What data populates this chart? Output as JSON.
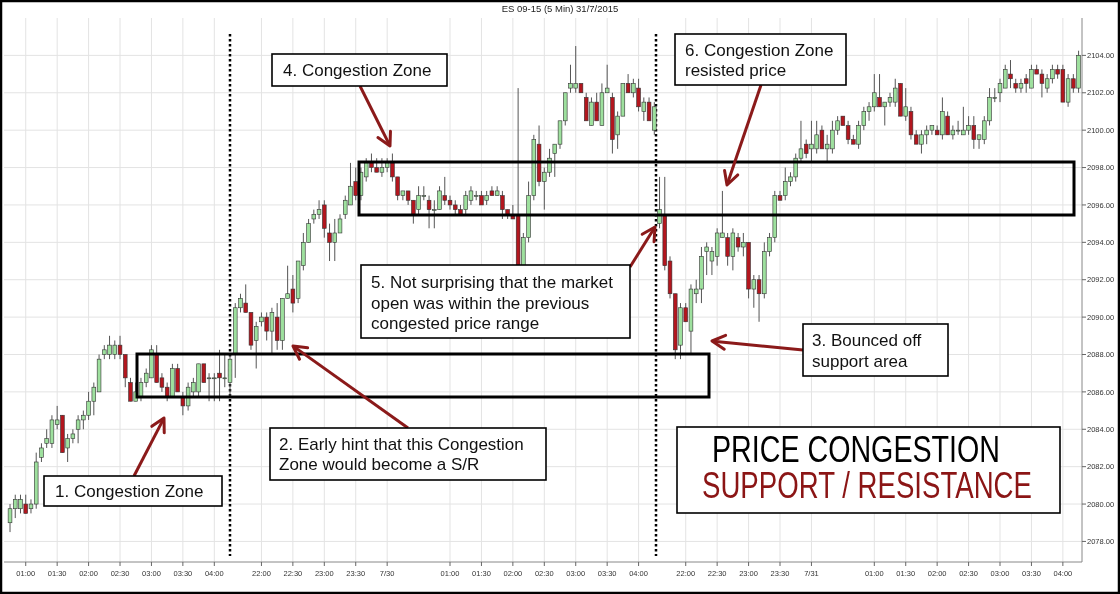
{
  "chart_data": {
    "type": "candlestick",
    "title": "ES 09-15 (5 Min) 31/7/2015",
    "categories": [
      null,
      null,
      null,
      "01:00",
      null,
      null,
      null,
      null,
      null,
      "01:30",
      null,
      null,
      null,
      null,
      null,
      "02:00",
      null,
      null,
      null,
      null,
      null,
      "02:30",
      null,
      null,
      null,
      null,
      null,
      "03:00",
      null,
      null,
      null,
      null,
      null,
      "03:30",
      null,
      null,
      null,
      null,
      null,
      "04:00",
      null,
      null,
      null,
      null,
      null,
      null,
      null,
      null,
      "22:00",
      null,
      null,
      null,
      null,
      null,
      "22:30",
      null,
      null,
      null,
      null,
      null,
      "23:00",
      null,
      null,
      null,
      null,
      null,
      "23:30",
      null,
      null,
      null,
      null,
      null,
      "7/30",
      null,
      null,
      null,
      null,
      null,
      null,
      null,
      null,
      null,
      null,
      null,
      "01:00",
      null,
      null,
      null,
      null,
      null,
      "01:30",
      null,
      null,
      null,
      null,
      null,
      "02:00",
      null,
      null,
      null,
      null,
      null,
      "02:30",
      null,
      null,
      null,
      null,
      null,
      "03:00",
      null,
      null,
      null,
      null,
      null,
      "03:30",
      null,
      null,
      null,
      null,
      null,
      "04:00",
      null,
      null,
      null,
      null,
      null,
      null,
      null,
      null,
      "22:00",
      null,
      null,
      null,
      null,
      null,
      "22:30",
      null,
      null,
      null,
      null,
      null,
      "23:00",
      null,
      null,
      null,
      null,
      null,
      "23:30",
      null,
      null,
      null,
      null,
      null,
      "7/31",
      null,
      null,
      null,
      null,
      null,
      null,
      null,
      null,
      null,
      null,
      null,
      "01:00",
      null,
      null,
      null,
      null,
      null,
      "01:30",
      null,
      null,
      null,
      null,
      null,
      "02:00",
      null,
      null,
      null,
      null,
      null,
      "02:30",
      null,
      null,
      null,
      null,
      null,
      "03:00",
      null,
      null,
      null,
      null,
      null,
      "03:30",
      null,
      null,
      null,
      null,
      null,
      "04:00",
      null,
      null,
      null
    ],
    "ohlc": [
      [
        2079,
        2080,
        2078.5,
        2079.75
      ],
      [
        2079.75,
        2080.5,
        2079.25,
        2080.25
      ],
      [
        2079.75,
        2080.5,
        2079.5,
        2080.25
      ],
      [
        2080,
        2080.5,
        2079.5,
        2079.5
      ],
      [
        2079.75,
        2080.25,
        2079.5,
        2080
      ],
      [
        2080,
        2082.75,
        2079.75,
        2082.25
      ],
      [
        2082.5,
        2083.25,
        2082.25,
        2083
      ],
      [
        2083.25,
        2084,
        2083,
        2083.5
      ],
      [
        2083.25,
        2084.75,
        2083,
        2084.5
      ],
      [
        2084.25,
        2085.25,
        2084,
        2084.5
      ],
      [
        2084.75,
        2084.75,
        2082.75,
        2082.75
      ],
      [
        2083,
        2083.75,
        2082.25,
        2083.5
      ],
      [
        2083.5,
        2084,
        2083.25,
        2083.75
      ],
      [
        2084,
        2084.75,
        2083.25,
        2084.5
      ],
      [
        2084.5,
        2085,
        2084,
        2084.75
      ],
      [
        2084.75,
        2086,
        2084.5,
        2085.5
      ],
      [
        2085.5,
        2086.5,
        2084.75,
        2086.25
      ],
      [
        2086,
        2088,
        2086,
        2087.75
      ],
      [
        2088,
        2088.5,
        2087.75,
        2088.25
      ],
      [
        2088,
        2089,
        2087.75,
        2088.5
      ],
      [
        2088,
        2088.75,
        2087.75,
        2088.5
      ],
      [
        2088.5,
        2089,
        2087.75,
        2088
      ],
      [
        2088,
        2088,
        2086.25,
        2086.75
      ],
      [
        2086.5,
        2086.75,
        2085.5,
        2085.5
      ],
      [
        2085.5,
        2086.5,
        2085.5,
        2086
      ],
      [
        2085.75,
        2086.75,
        2085.5,
        2086.5
      ],
      [
        2086.5,
        2087.25,
        2086.25,
        2087
      ],
      [
        2086.75,
        2088.5,
        2086.75,
        2088.25
      ],
      [
        2088,
        2088.5,
        2086.5,
        2086.5
      ],
      [
        2086.75,
        2087,
        2086,
        2086.25
      ],
      [
        2086.25,
        2086.5,
        2085.5,
        2085.75
      ],
      [
        2085.75,
        2087.5,
        2085.75,
        2087.25
      ],
      [
        2087.25,
        2087.5,
        2086,
        2086
      ],
      [
        2085.75,
        2086,
        2084.75,
        2085.25
      ],
      [
        2085.25,
        2086.5,
        2085,
        2086.25
      ],
      [
        2086,
        2086.75,
        2085.75,
        2086.5
      ],
      [
        2086,
        2087.5,
        2085.75,
        2087.5
      ],
      [
        2087.5,
        2087.5,
        2086.5,
        2086.5
      ],
      [
        2086.75,
        2087,
        2085.5,
        2086.75
      ],
      [
        2086.75,
        2087,
        2085.5,
        2086.75
      ],
      [
        2087,
        2088.25,
        2085.5,
        2086.75
      ],
      [
        2086.75,
        2088,
        2086.25,
        2086.75
      ],
      [
        2086.5,
        2088,
        2085.75,
        2087.75
      ],
      [
        2088,
        2090.75,
        2086.75,
        2090.5
      ],
      [
        2090.5,
        2091.25,
        2090.25,
        2091
      ],
      [
        2090.75,
        2091.75,
        2090.25,
        2090.25
      ],
      [
        2090.25,
        2090.25,
        2088.25,
        2088.5
      ],
      [
        2088.75,
        2089.75,
        2087.25,
        2089.5
      ],
      [
        2089.75,
        2090.25,
        2089.5,
        2090
      ],
      [
        2090,
        2090.25,
        2088.75,
        2089.25
      ],
      [
        2089.25,
        2090.5,
        2088,
        2090.25
      ],
      [
        2090,
        2090.75,
        2088.25,
        2088.75
      ],
      [
        2088.75,
        2091,
        2088.25,
        2091
      ],
      [
        2091,
        2092.75,
        2091,
        2091.25
      ],
      [
        2091.5,
        2092.25,
        2090.25,
        2090.75
      ],
      [
        2091,
        2093,
        2090.75,
        2093
      ],
      [
        2092.75,
        2094.5,
        2092.5,
        2094
      ],
      [
        2094,
        2095.25,
        2094,
        2095
      ],
      [
        2095.25,
        2095.75,
        2095,
        2095.5
      ],
      [
        2095.5,
        2096.25,
        2095.25,
        2095.75
      ],
      [
        2096,
        2096.25,
        2094.25,
        2094.75
      ],
      [
        2094.5,
        2095,
        2093,
        2094
      ],
      [
        2094,
        2095.25,
        2093,
        2094.5
      ],
      [
        2094.5,
        2095.5,
        2094.5,
        2095.25
      ],
      [
        2095.5,
        2096.5,
        2095.25,
        2096.25
      ],
      [
        2096,
        2098.25,
        2096,
        2097
      ],
      [
        2097.25,
        2098,
        2096.25,
        2096.5
      ],
      [
        2096.5,
        2098,
        2096.25,
        2097.75
      ],
      [
        2097.5,
        2098.5,
        2097.25,
        2098.25
      ],
      [
        2098.25,
        2098.75,
        2097.75,
        2098
      ],
      [
        2098,
        2098.5,
        2097.75,
        2097.75
      ],
      [
        2097.75,
        2098.5,
        2097.5,
        2098
      ],
      [
        2098,
        2098.5,
        2097.75,
        2098.25
      ],
      [
        2098.25,
        2098.75,
        2097.25,
        2097.5
      ],
      [
        2097.5,
        2097.5,
        2096.25,
        2096.5
      ],
      [
        2096.5,
        2096.75,
        2096.25,
        2096.75
      ],
      [
        2096.75,
        2096.75,
        2096,
        2096.25
      ],
      [
        2096.25,
        2096.25,
        2095,
        2095.5
      ],
      [
        2095.75,
        2097,
        2095.5,
        2096.5
      ],
      [
        2096.5,
        2097,
        2096.25,
        2096.5
      ],
      [
        2096.25,
        2096.5,
        2094.75,
        2095.75
      ],
      [
        2095.75,
        2096.25,
        2094.75,
        2095.75
      ],
      [
        2095.75,
        2097,
        2095.75,
        2096.75
      ],
      [
        2096.5,
        2097.5,
        2096,
        2096.25
      ],
      [
        2096.25,
        2096.5,
        2095.75,
        2096
      ],
      [
        2096,
        2096.25,
        2095.5,
        2095.75
      ],
      [
        2095.75,
        2096,
        2095.5,
        2095.5
      ],
      [
        2095.75,
        2096.75,
        2095.5,
        2096.5
      ],
      [
        2096.25,
        2097,
        2096,
        2096.75
      ],
      [
        2096.5,
        2096.75,
        2096.25,
        2096.5
      ],
      [
        2096.5,
        2096.75,
        2096,
        2096
      ],
      [
        2096.25,
        2096.75,
        2096,
        2096.5
      ],
      [
        2096.75,
        2097,
        2096.5,
        2096.5
      ],
      [
        2096.5,
        2097,
        2096.5,
        2096.75
      ],
      [
        2096.5,
        2096.75,
        2095.25,
        2095.75
      ],
      [
        2095.75,
        2095.75,
        2095.25,
        2095.5
      ],
      [
        2095.5,
        2096,
        2095.25,
        2095.25
      ],
      [
        2095.5,
        2102.25,
        2092.75,
        2092.75
      ],
      [
        2092.75,
        2094.5,
        2092.75,
        2094.25
      ],
      [
        2094.25,
        2097.25,
        2094,
        2096.5
      ],
      [
        2096.5,
        2099.75,
        2096.25,
        2099.5
      ],
      [
        2099.25,
        2100.25,
        2097,
        2097.25
      ],
      [
        2097.25,
        2098,
        2095.75,
        2097.75
      ],
      [
        2097.75,
        2099,
        2097.5,
        2098.5
      ],
      [
        2098.75,
        2099.25,
        2097.5,
        2099.25
      ],
      [
        2099.25,
        2100.5,
        2099,
        2100.5
      ],
      [
        2100.5,
        2102,
        2100.25,
        2102
      ],
      [
        2102.25,
        2103.5,
        2102,
        2102.5
      ],
      [
        2102.25,
        2104.5,
        2102,
        2102.5
      ],
      [
        2102.5,
        2102.5,
        2102,
        2102
      ],
      [
        2101.75,
        2102,
        2100.5,
        2100.5
      ],
      [
        2100.25,
        2101.75,
        2100.25,
        2101.5
      ],
      [
        2101.5,
        2102,
        2100.5,
        2100.5
      ],
      [
        2100.25,
        2102.5,
        2100.25,
        2102
      ],
      [
        2102,
        2103.5,
        2102,
        2102.25
      ],
      [
        2101.75,
        2102,
        2098.75,
        2099.5
      ],
      [
        2099.75,
        2101,
        2099,
        2100.75
      ],
      [
        2100.75,
        2102.5,
        2100.75,
        2102.5
      ],
      [
        2102.5,
        2103,
        2102,
        2102
      ],
      [
        2102,
        2102.75,
        2101.75,
        2102.5
      ],
      [
        2102.25,
        2102.75,
        2101,
        2101.25
      ],
      [
        2101,
        2101.75,
        2100.5,
        2101.5
      ],
      [
        2101.5,
        2101.75,
        2100.5,
        2100.5
      ],
      [
        2100,
        2101.5,
        2099.75,
        2101.25
      ],
      [
        2095,
        2097.5,
        2094.75,
        2095.75
      ],
      [
        2095.5,
        2097.5,
        2092.5,
        2092.75
      ],
      [
        2093,
        2093.25,
        2091,
        2091.25
      ],
      [
        2091.25,
        2091.25,
        2087.75,
        2088.25
      ],
      [
        2088.5,
        2090.75,
        2087.75,
        2090.5
      ],
      [
        2090.5,
        2090.75,
        2089.75,
        2089.75
      ],
      [
        2089.25,
        2091.75,
        2088,
        2091.5
      ],
      [
        2091.25,
        2092,
        2090.75,
        2091.5
      ],
      [
        2091.5,
        2093.75,
        2090.75,
        2093.25
      ],
      [
        2093.5,
        2094,
        2092.25,
        2093.75
      ],
      [
        2093,
        2093.75,
        2092.25,
        2093.5
      ],
      [
        2093.25,
        2094.75,
        2092.75,
        2094.5
      ],
      [
        2094.25,
        2096.75,
        2094.25,
        2094.5
      ],
      [
        2094.25,
        2094.5,
        2092.75,
        2093.25
      ],
      [
        2093.25,
        2094.75,
        2092.5,
        2094.5
      ],
      [
        2094.25,
        2094.5,
        2093.5,
        2093.75
      ],
      [
        2093.75,
        2094.5,
        2093.25,
        2094
      ],
      [
        2094,
        2094,
        2091,
        2091.5
      ],
      [
        2091.5,
        2092.25,
        2090.5,
        2092
      ],
      [
        2092,
        2092.25,
        2089.75,
        2091.25
      ],
      [
        2091.25,
        2094,
        2091,
        2093.5
      ],
      [
        2093.5,
        2094.5,
        2093.25,
        2094.25
      ],
      [
        2094.25,
        2096.75,
        2094,
        2096.5
      ],
      [
        2096.5,
        2096.75,
        2096.25,
        2096.25
      ],
      [
        2096.5,
        2098,
        2096.25,
        2097.25
      ],
      [
        2097.25,
        2097.75,
        2097,
        2097.5
      ],
      [
        2097.5,
        2098.75,
        2097.25,
        2098.5
      ],
      [
        2098.5,
        2100.5,
        2098.25,
        2099
      ],
      [
        2099.25,
        2099.5,
        2098.5,
        2098.75
      ],
      [
        2099,
        2100.5,
        2098.25,
        2099.25
      ],
      [
        2099,
        2100.5,
        2098.75,
        2099.75
      ],
      [
        2100,
        2100.25,
        2099,
        2099
      ],
      [
        2099,
        2099.75,
        2098.25,
        2099.25
      ],
      [
        2099,
        2100.5,
        2098.75,
        2100
      ],
      [
        2100,
        2100.75,
        2099.75,
        2100.5
      ],
      [
        2100.75,
        2100.75,
        2100.25,
        2100.25
      ],
      [
        2100.25,
        2100.5,
        2099.25,
        2099.5
      ],
      [
        2099.5,
        2099.75,
        2099.25,
        2099.25
      ],
      [
        2099.25,
        2100.5,
        2099,
        2100.25
      ],
      [
        2100.25,
        2101.25,
        2100,
        2101
      ],
      [
        2101,
        2101.5,
        2100.5,
        2101.25
      ],
      [
        2101.25,
        2103,
        2101,
        2102
      ],
      [
        2101.75,
        2103,
        2101.25,
        2101.25
      ],
      [
        2101.25,
        2101.5,
        2100.25,
        2101.5
      ],
      [
        2101.5,
        2102,
        2101.25,
        2101.75
      ],
      [
        2101.5,
        2102.75,
        2101.25,
        2102.25
      ],
      [
        2102.5,
        2102.5,
        2100.75,
        2100.75
      ],
      [
        2100.75,
        2102.25,
        2100.5,
        2101.25
      ],
      [
        2101,
        2101.25,
        2099.5,
        2099.75
      ],
      [
        2099.75,
        2100,
        2099.25,
        2099.25
      ],
      [
        2099.25,
        2100,
        2098.75,
        2099.75
      ],
      [
        2099.75,
        2100.25,
        2099.25,
        2100
      ],
      [
        2100,
        2100.25,
        2099.75,
        2100.25
      ],
      [
        2100,
        2100.25,
        2099.75,
        2099.75
      ],
      [
        2099.75,
        2101.75,
        2099.5,
        2101
      ],
      [
        2100.75,
        2101,
        2099.75,
        2099.75
      ],
      [
        2099.75,
        2100.25,
        2099.5,
        2100
      ],
      [
        2100,
        2100.5,
        2099.75,
        2100
      ],
      [
        2099.75,
        2101.25,
        2099.75,
        2100
      ],
      [
        2100,
        2100.75,
        2099.75,
        2100.25
      ],
      [
        2100.25,
        2100.75,
        2099,
        2099.5
      ],
      [
        2099.5,
        2099.75,
        2099,
        2099.75
      ],
      [
        2099.5,
        2100.75,
        2099.25,
        2100.5
      ],
      [
        2100.5,
        2102.25,
        2100.25,
        2101.75
      ],
      [
        2101.75,
        2102.25,
        2101.5,
        2101.75
      ],
      [
        2102,
        2102.75,
        2101.5,
        2102.5
      ],
      [
        2102.25,
        2103.5,
        2102.25,
        2103.25
      ],
      [
        2103,
        2103.75,
        2102.25,
        2102.75
      ],
      [
        2102.5,
        2102.75,
        2102,
        2102.25
      ],
      [
        2102.25,
        2102.75,
        2102,
        2102.5
      ],
      [
        2102.75,
        2103,
        2102,
        2102.5
      ],
      [
        2102.25,
        2103.5,
        2102.25,
        2103.25
      ],
      [
        2103.25,
        2103.5,
        2103,
        2103
      ],
      [
        2103,
        2103.25,
        2101.75,
        2102.5
      ],
      [
        2102.25,
        2103,
        2102,
        2102.75
      ],
      [
        2102.75,
        2103.5,
        2102.5,
        2103.25
      ],
      [
        2103.25,
        2103.5,
        2102.75,
        2103
      ],
      [
        2103.25,
        2103.5,
        2101.5,
        2101.5
      ],
      [
        2101.5,
        2103,
        2101.25,
        2102.75
      ],
      [
        2102.75,
        2103,
        2102,
        2102.25
      ],
      [
        2102.25,
        2104.25,
        2102,
        2104
      ]
    ],
    "colors": [
      "#9ee09e",
      "#9ee09e",
      "#9ee09e",
      "#b3161e",
      "#9ee09e",
      "#9ee09e",
      "#9ee09e",
      "#9ee09e",
      "#9ee09e",
      "#9ee09e",
      "#b3161e",
      "#9ee09e",
      "#9ee09e",
      "#9ee09e",
      "#9ee09e",
      "#9ee09e",
      "#9ee09e",
      "#9ee09e",
      "#9ee09e",
      "#9ee09e",
      "#9ee09e",
      "#b3161e",
      "#b3161e",
      "#b3161e",
      "#9ee09e",
      "#9ee09e",
      "#9ee09e",
      "#9ee09e",
      "#b3161e",
      "#b3161e",
      "#b3161e",
      "#9ee09e",
      "#b3161e",
      "#b3161e",
      "#9ee09e",
      "#9ee09e",
      "#9ee09e",
      "#b3161e",
      "#9ee09e",
      "#9ee09e",
      "#b3161e",
      "#9ee09e",
      "#9ee09e",
      "#9ee09e",
      "#9ee09e",
      "#b3161e",
      "#b3161e",
      "#9ee09e",
      "#9ee09e",
      "#b3161e",
      "#9ee09e",
      "#b3161e",
      "#9ee09e",
      "#9ee09e",
      "#b3161e",
      "#9ee09e",
      "#9ee09e",
      "#9ee09e",
      "#9ee09e",
      "#9ee09e",
      "#b3161e",
      "#b3161e",
      "#9ee09e",
      "#9ee09e",
      "#9ee09e",
      "#9ee09e",
      "#b3161e",
      "#9ee09e",
      "#9ee09e",
      "#b3161e",
      "#b3161e",
      "#9ee09e",
      "#9ee09e",
      "#b3161e",
      "#b3161e",
      "#9ee09e",
      "#b3161e",
      "#b3161e",
      "#9ee09e",
      "#9ee09e",
      "#b3161e",
      "#9ee09e",
      "#9ee09e",
      "#b3161e",
      "#b3161e",
      "#b3161e",
      "#b3161e",
      "#9ee09e",
      "#9ee09e",
      "#9ee09e",
      "#b3161e",
      "#9ee09e",
      "#b3161e",
      "#9ee09e",
      "#b3161e",
      "#b3161e",
      "#b3161e",
      "#b3161e",
      "#9ee09e",
      "#9ee09e",
      "#9ee09e",
      "#b3161e",
      "#9ee09e",
      "#9ee09e",
      "#9ee09e",
      "#9ee09e",
      "#9ee09e",
      "#9ee09e",
      "#9ee09e",
      "#b3161e",
      "#b3161e",
      "#9ee09e",
      "#b3161e",
      "#9ee09e",
      "#9ee09e",
      "#b3161e",
      "#9ee09e",
      "#9ee09e",
      "#b3161e",
      "#9ee09e",
      "#b3161e",
      "#9ee09e",
      "#b3161e",
      "#9ee09e",
      "#9ee09e",
      "#b3161e",
      "#b3161e",
      "#b3161e",
      "#9ee09e",
      "#b3161e",
      "#9ee09e",
      "#9ee09e",
      "#9ee09e",
      "#9ee09e",
      "#9ee09e",
      "#9ee09e",
      "#9ee09e",
      "#b3161e",
      "#9ee09e",
      "#b3161e",
      "#9ee09e",
      "#b3161e",
      "#9ee09e",
      "#b3161e",
      "#9ee09e",
      "#9ee09e",
      "#9ee09e",
      "#b3161e",
      "#9ee09e",
      "#9ee09e",
      "#9ee09e",
      "#9ee09e",
      "#b3161e",
      "#9ee09e",
      "#9ee09e",
      "#b3161e",
      "#9ee09e",
      "#9ee09e",
      "#9ee09e",
      "#b3161e",
      "#b3161e",
      "#b3161e",
      "#9ee09e",
      "#9ee09e",
      "#9ee09e",
      "#9ee09e",
      "#b3161e",
      "#9ee09e",
      "#9ee09e",
      "#9ee09e",
      "#b3161e",
      "#9ee09e",
      "#b3161e",
      "#b3161e",
      "#9ee09e",
      "#9ee09e",
      "#9ee09e",
      "#b3161e",
      "#9ee09e",
      "#b3161e",
      "#9ee09e",
      "#9ee09e",
      "#9ee09e",
      "#9ee09e",
      "#b3161e",
      "#9ee09e",
      "#9ee09e",
      "#9ee09e",
      "#9ee09e",
      "#9ee09e",
      "#9ee09e",
      "#b3161e",
      "#b3161e",
      "#9ee09e",
      "#b3161e",
      "#9ee09e",
      "#b3161e",
      "#b3161e",
      "#9ee09e",
      "#9ee09e",
      "#b3161e",
      "#b3161e",
      "#9ee09e",
      "#b3161e",
      "#9ee09e"
    ],
    "ylim": [
      2076.9,
      2106
    ],
    "yticks": [
      {
        "value": 2078,
        "label": "2078.00"
      },
      {
        "value": 2080,
        "label": "2080.00"
      },
      {
        "value": 2082,
        "label": "2082.00"
      },
      {
        "value": 2084,
        "label": "2084.00"
      },
      {
        "value": 2086,
        "label": "2086.00"
      },
      {
        "value": 2088,
        "label": "2088.00"
      },
      {
        "value": 2090,
        "label": "2090.00"
      },
      {
        "value": 2092,
        "label": "2092.00"
      },
      {
        "value": 2094,
        "label": "2094.00"
      },
      {
        "value": 2096,
        "label": "2096.00"
      },
      {
        "value": 2098,
        "label": "2098.00"
      },
      {
        "value": 2100,
        "label": "2100.00"
      },
      {
        "value": 2102,
        "label": "2102.00"
      },
      {
        "value": 2104,
        "label": "2104.00"
      }
    ],
    "grid": true,
    "annotations": [
      "1. Congestion Zone",
      "2. Early hint that this Congestion\nZone would become a S/R",
      "3. Bounced off\nsupport area",
      "4. Congestion Zone",
      "5. Not surprising that the market\nopen was within the previous\ncongested price range",
      "6. Congestion Zone\nresisted price",
      "PRICE CONGESTION",
      "SUPPORT / RESISTANCE"
    ]
  }
}
